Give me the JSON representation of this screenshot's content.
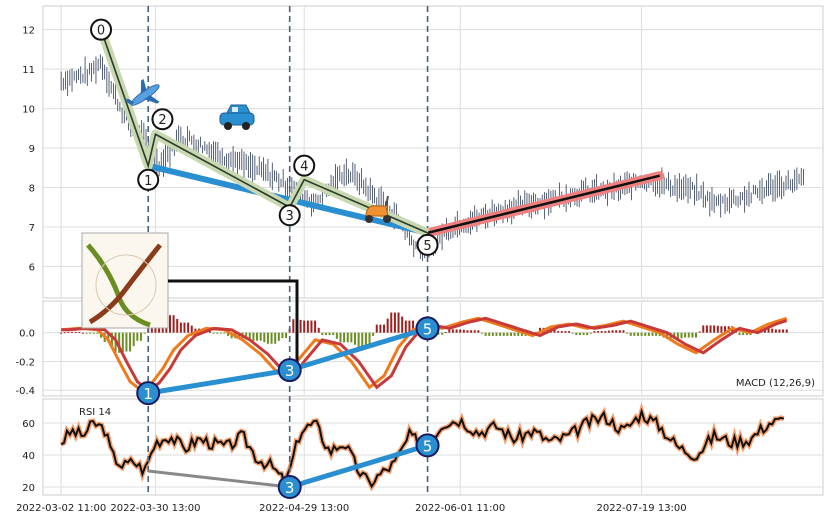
{
  "chart_data": {
    "type": "line",
    "x_tick_labels": [
      "2022-03-02 11:00",
      "2022-03-30 13:00",
      "2022-04-29 13:00",
      "2022-06-01 11:00",
      "2022-07-19 13:00"
    ],
    "price_panel": {
      "ylim": [
        5.2,
        12.6
      ],
      "ticks": [
        6,
        7,
        8,
        9,
        10,
        11,
        12
      ],
      "price_samples": [
        [
          0,
          10.7
        ],
        [
          4,
          10.8
        ],
        [
          8,
          10.9
        ],
        [
          11,
          11.2
        ],
        [
          14,
          10.5
        ],
        [
          17,
          9.9
        ],
        [
          20,
          9.5
        ],
        [
          24,
          9.1
        ],
        [
          27,
          8.6
        ],
        [
          30,
          8.9
        ],
        [
          33,
          9.3
        ],
        [
          36,
          9.2
        ],
        [
          40,
          9.0
        ],
        [
          44,
          8.8
        ],
        [
          48,
          8.7
        ],
        [
          52,
          8.5
        ],
        [
          56,
          8.4
        ],
        [
          60,
          8.2
        ],
        [
          65,
          7.9
        ],
        [
          70,
          7.6
        ],
        [
          74,
          8.0
        ],
        [
          78,
          8.4
        ],
        [
          82,
          8.2
        ],
        [
          86,
          7.8
        ],
        [
          90,
          7.5
        ],
        [
          94,
          7.1
        ],
        [
          97,
          6.6
        ],
        [
          100,
          6.4
        ],
        [
          103,
          6.6
        ],
        [
          106,
          6.9
        ],
        [
          110,
          7.1
        ],
        [
          115,
          7.2
        ],
        [
          120,
          7.4
        ],
        [
          125,
          7.5
        ],
        [
          130,
          7.6
        ],
        [
          135,
          7.7
        ],
        [
          140,
          7.8
        ],
        [
          145,
          7.9
        ],
        [
          150,
          7.9
        ],
        [
          155,
          8.0
        ],
        [
          160,
          8.2
        ],
        [
          165,
          8.1
        ],
        [
          170,
          8.0
        ],
        [
          175,
          7.9
        ],
        [
          180,
          7.6
        ],
        [
          185,
          7.7
        ],
        [
          190,
          7.8
        ],
        [
          195,
          8.0
        ],
        [
          200,
          8.1
        ],
        [
          205,
          8.2
        ]
      ],
      "wave_points": [
        {
          "label": "0",
          "x": 11,
          "y": 12.0
        },
        {
          "label": "1",
          "x": 24,
          "y": 8.55
        },
        {
          "label": "2",
          "x": 26,
          "y": 9.35
        },
        {
          "label": "3",
          "x": 63,
          "y": 7.5
        },
        {
          "label": "4",
          "x": 67,
          "y": 8.2
        },
        {
          "label": "5",
          "x": 101,
          "y": 6.85
        }
      ],
      "blue_line": [
        [
          24,
          8.55
        ],
        [
          101,
          6.85
        ]
      ],
      "red_trend": [
        [
          101,
          6.85
        ],
        [
          165,
          8.3
        ]
      ],
      "vertical_markers": [
        24,
        63,
        101
      ]
    },
    "macd_panel": {
      "label": "MACD (12,26,9)",
      "ylim": [
        -0.44,
        0.22
      ],
      "ticks": [
        0.0,
        -0.2,
        -0.4
      ],
      "tick_labels": [
        "0.0",
        "-0.2",
        "-0.4"
      ],
      "macd_samples": [
        [
          0,
          0.02
        ],
        [
          5,
          0.03
        ],
        [
          10,
          0.02
        ],
        [
          13,
          -0.05
        ],
        [
          16,
          -0.2
        ],
        [
          19,
          -0.34
        ],
        [
          22,
          -0.4
        ],
        [
          25,
          -0.35
        ],
        [
          28,
          -0.25
        ],
        [
          31,
          -0.12
        ],
        [
          35,
          -0.02
        ],
        [
          40,
          0.03
        ],
        [
          45,
          0.02
        ],
        [
          50,
          -0.05
        ],
        [
          55,
          -0.15
        ],
        [
          59,
          -0.26
        ],
        [
          62,
          -0.3
        ],
        [
          65,
          -0.2
        ],
        [
          70,
          -0.05
        ],
        [
          75,
          -0.08
        ],
        [
          80,
          -0.2
        ],
        [
          85,
          -0.38
        ],
        [
          89,
          -0.3
        ],
        [
          93,
          -0.1
        ],
        [
          97,
          0.02
        ],
        [
          101,
          0.05
        ],
        [
          105,
          0.03
        ],
        [
          110,
          0.07
        ],
        [
          115,
          0.1
        ],
        [
          120,
          0.06
        ],
        [
          125,
          0.02
        ],
        [
          130,
          -0.02
        ],
        [
          135,
          0.04
        ],
        [
          140,
          0.06
        ],
        [
          145,
          0.03
        ],
        [
          150,
          0.05
        ],
        [
          155,
          0.08
        ],
        [
          160,
          0.04
        ],
        [
          165,
          0.0
        ],
        [
          170,
          -0.08
        ],
        [
          175,
          -0.14
        ],
        [
          180,
          -0.05
        ],
        [
          185,
          0.03
        ],
        [
          190,
          0.0
        ],
        [
          195,
          0.06
        ],
        [
          200,
          0.1
        ]
      ],
      "signal_lag": 2,
      "wave_points": [
        {
          "label": "1",
          "x": 24,
          "y": -0.42
        },
        {
          "label": "3",
          "x": 63,
          "y": -0.26
        },
        {
          "label": "5",
          "x": 101,
          "y": 0.03
        }
      ]
    },
    "rsi_panel": {
      "label": "RSI 14",
      "ylim": [
        15,
        75
      ],
      "ticks": [
        20,
        40,
        60
      ],
      "rsi_samples": [
        [
          0,
          48
        ],
        [
          3,
          55
        ],
        [
          6,
          52
        ],
        [
          9,
          60
        ],
        [
          12,
          56
        ],
        [
          14,
          40
        ],
        [
          17,
          33
        ],
        [
          20,
          36
        ],
        [
          23,
          30
        ],
        [
          26,
          48
        ],
        [
          30,
          52
        ],
        [
          34,
          44
        ],
        [
          38,
          50
        ],
        [
          42,
          47
        ],
        [
          46,
          45
        ],
        [
          50,
          52
        ],
        [
          54,
          38
        ],
        [
          58,
          33
        ],
        [
          62,
          22
        ],
        [
          66,
          55
        ],
        [
          70,
          60
        ],
        [
          74,
          42
        ],
        [
          78,
          48
        ],
        [
          82,
          30
        ],
        [
          85,
          22
        ],
        [
          88,
          28
        ],
        [
          92,
          35
        ],
        [
          96,
          52
        ],
        [
          101,
          45
        ],
        [
          105,
          60
        ],
        [
          110,
          62
        ],
        [
          115,
          54
        ],
        [
          120,
          58
        ],
        [
          125,
          50
        ],
        [
          130,
          55
        ],
        [
          135,
          48
        ],
        [
          140,
          52
        ],
        [
          145,
          60
        ],
        [
          150,
          64
        ],
        [
          155,
          55
        ],
        [
          160,
          66
        ],
        [
          165,
          58
        ],
        [
          170,
          45
        ],
        [
          175,
          40
        ],
        [
          180,
          52
        ],
        [
          185,
          48
        ],
        [
          190,
          50
        ],
        [
          195,
          60
        ],
        [
          200,
          62
        ]
      ],
      "wave_points": [
        {
          "label": "3",
          "x": 63,
          "y": 20
        },
        {
          "label": "5",
          "x": 101,
          "y": 46
        }
      ],
      "grey_line": [
        [
          24,
          30
        ],
        [
          63,
          20
        ]
      ]
    }
  }
}
